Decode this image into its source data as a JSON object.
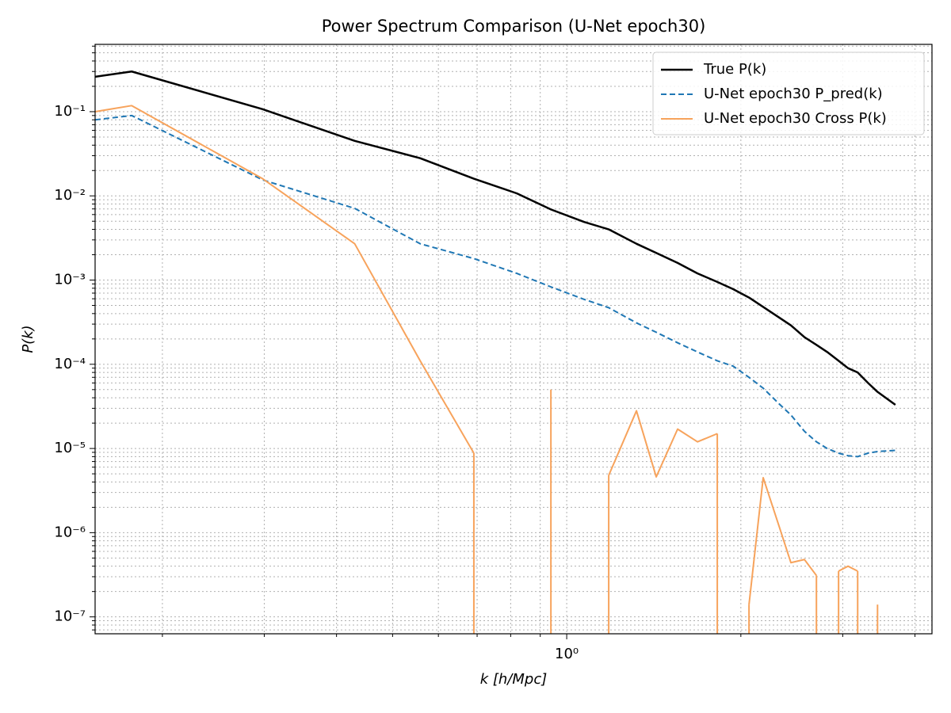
{
  "chart_data": {
    "type": "line",
    "title": "Power Spectrum Comparison (U-Net epoch30)",
    "x_label": "k [h/Mpc]",
    "y_label": "P(k)",
    "x_log": true,
    "y_log": true,
    "grid": true,
    "legend": "upper right",
    "x": [
      0.153,
      0.177,
      0.298,
      0.43,
      0.558,
      0.691,
      0.82,
      0.939,
      1.072,
      1.182,
      1.32,
      1.428,
      1.555,
      1.683,
      1.821,
      1.94,
      2.066,
      2.186,
      2.328,
      2.441,
      2.576,
      2.702,
      2.82,
      2.951,
      3.064,
      3.184,
      3.318,
      3.446,
      3.7
    ],
    "series": [
      {
        "name": "True P(k)",
        "color": "#000000",
        "linestyle": "solid",
        "width": 2.5,
        "values": [
          0.26,
          0.3,
          0.107,
          0.045,
          0.028,
          0.016,
          0.0107,
          0.0069,
          0.0049,
          0.004,
          0.0027,
          0.0021,
          0.0016,
          0.0012,
          0.00095,
          0.00078,
          0.00062,
          0.00048,
          0.00036,
          0.00029,
          0.00021,
          0.00017,
          0.00014,
          0.00011,
          9e-05,
          8e-05,
          6e-05,
          4.7e-05,
          3.3e-05
        ]
      },
      {
        "name": "U-Net epoch30 P_pred(k)",
        "color": "#1f77b4",
        "linestyle": "dashed",
        "width": 2,
        "values": [
          0.08,
          0.09,
          0.0155,
          0.0071,
          0.0027,
          0.0018,
          0.0012,
          0.00083,
          0.00059,
          0.00047,
          0.00031,
          0.00024,
          0.00018,
          0.00014,
          0.00011,
          9.5e-05,
          7e-05,
          5.2e-05,
          3.4e-05,
          2.5e-05,
          1.6e-05,
          1.2e-05,
          1e-05,
          8.8e-06,
          8.2e-06,
          8e-06,
          8.8e-06,
          9.2e-06,
          9.5e-06
        ]
      },
      {
        "name": "U-Net epoch30 Cross P(k)",
        "color": "#f7a35c",
        "linestyle": "solid",
        "width": 2,
        "values": [
          0.1,
          0.118,
          0.016,
          0.0027,
          0.00011,
          8.8e-06,
          null,
          5e-05,
          null,
          4.8e-06,
          2.8e-05,
          4.6e-06,
          1.7e-05,
          1.2e-05,
          1.5e-05,
          null,
          1.4e-07,
          4.5e-06,
          1.2e-06,
          4.4e-07,
          4.8e-07,
          3.1e-07,
          null,
          3.5e-07,
          4e-07,
          3.5e-07,
          null,
          1.4e-07,
          null
        ]
      }
    ],
    "xlim": [
      0.153,
      4.28
    ],
    "ylim": [
      6.3e-08,
      0.63
    ],
    "xticks": [
      {
        "value": 1,
        "label": "10⁰"
      }
    ],
    "yticks": [
      {
        "value": 1e-07,
        "label": "10⁻⁷"
      },
      {
        "value": 1e-06,
        "label": "10⁻⁶"
      },
      {
        "value": 1e-05,
        "label": "10⁻⁵"
      },
      {
        "value": 0.0001,
        "label": "10⁻⁴"
      },
      {
        "value": 0.001,
        "label": "10⁻³"
      },
      {
        "value": 0.01,
        "label": "10⁻²"
      },
      {
        "value": 0.1,
        "label": "10⁻¹"
      }
    ]
  }
}
